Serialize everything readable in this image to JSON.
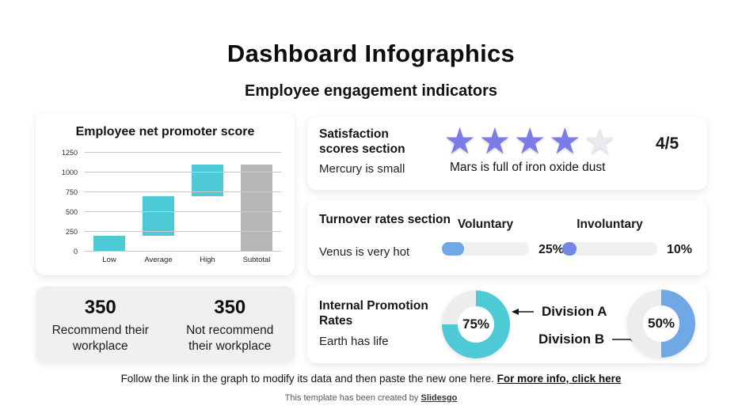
{
  "page": {
    "title": "Dashboard Infographics",
    "subtitle": "Employee engagement indicators",
    "footer_note": "Follow the link in the graph to modify its data and then paste the new one here.",
    "footer_link": "For more info, click here",
    "credit_text": "This template has been created by",
    "credit_link": "Slidesgo"
  },
  "colors": {
    "teal": "#4ec9d6",
    "gray_bar": "#b6b6b6",
    "star_filled": "#7c7ce8",
    "star_empty": "#e9e9ee",
    "blue": "#6fa8e5",
    "indigo": "#7487e0",
    "track_gray": "#f0f0f0",
    "donut_rest": "#ededed",
    "gridline": "#c9c9c9"
  },
  "cards": {
    "nps": {
      "title": "Employee net promoter score"
    },
    "satisfaction": {
      "title": "Satisfaction scores section",
      "subtitle": "Mercury is small",
      "caption": "Mars is full of iron oxide dust",
      "rating_label": "4/5",
      "stars_filled": 4,
      "stars_total": 5
    },
    "turnover": {
      "title": "Turnover rates section",
      "subtitle": "Venus is very hot",
      "meters": [
        {
          "label": "Voluntary",
          "percent": 25,
          "percent_label": "25%",
          "color": "#6fa8e5"
        },
        {
          "label": "Involuntary",
          "percent": 10,
          "percent_label": "10%",
          "color": "#7487e0"
        }
      ]
    },
    "stats": {
      "items": [
        {
          "value": "350",
          "label": "Recommend their workplace"
        },
        {
          "value": "350",
          "label": "Not recommend their workplace"
        }
      ]
    },
    "promotion": {
      "title": "Internal Promotion Rates",
      "subtitle": "Earth has life",
      "donuts": [
        {
          "percent": 75,
          "label": "75%",
          "color": "#4ec9d6",
          "legend": "Division A"
        },
        {
          "percent": 50,
          "label": "50%",
          "color": "#6fa8e5",
          "legend": "Division B"
        }
      ]
    }
  },
  "chart_data": [
    {
      "type": "bar",
      "subtype": "waterfall",
      "title": "Employee net promoter score",
      "categories": [
        "Low",
        "Average",
        "High",
        "Subtotal"
      ],
      "series": [
        {
          "name": "Net promoter score",
          "ranges": [
            [
              0,
              200
            ],
            [
              200,
              700
            ],
            [
              700,
              1100
            ],
            [
              0,
              1100
            ]
          ],
          "values": [
            200,
            500,
            400,
            1100
          ]
        }
      ],
      "bar_colors": [
        "#4ec9d6",
        "#4ec9d6",
        "#4ec9d6",
        "#b6b6b6"
      ],
      "ylim": [
        0,
        1250
      ],
      "yticks": [
        0,
        250,
        500,
        750,
        1000,
        1250
      ],
      "grid": true,
      "legend": false
    },
    {
      "type": "rating",
      "title": "Satisfaction scores section",
      "value": 4,
      "max": 5,
      "label": "4/5"
    },
    {
      "type": "bar",
      "subtype": "progress",
      "title": "Turnover rates section",
      "categories": [
        "Voluntary",
        "Involuntary"
      ],
      "values": [
        25,
        10
      ],
      "unit": "%"
    },
    {
      "type": "pie",
      "subtype": "donut",
      "title": "Internal Promotion Rates",
      "slices": [
        {
          "label": "Division A",
          "value": 75,
          "color": "#4ec9d6"
        },
        {
          "label": "Division B",
          "value": 50,
          "color": "#6fa8e5"
        }
      ]
    },
    {
      "type": "table",
      "subtype": "stat-pair",
      "values": [
        350,
        350
      ],
      "labels": [
        "Recommend their workplace",
        "Not recommend their workplace"
      ]
    }
  ]
}
